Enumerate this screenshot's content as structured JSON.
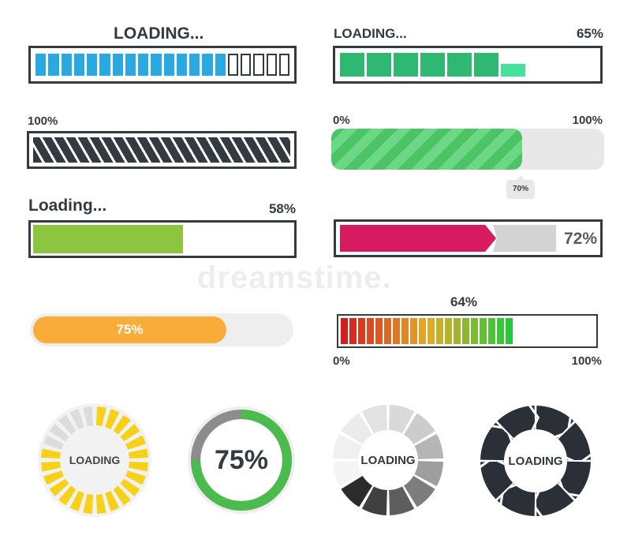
{
  "watermark": "dreamstime.",
  "bar_blue": {
    "label": "LOADING...",
    "total_segments": 20,
    "filled_segments": 15,
    "color": "#29a9e0"
  },
  "bar_green_blocks": {
    "label": "LOADING...",
    "percent_label": "65%",
    "progress": 0.65,
    "color": "#2eb872"
  },
  "bar_dark_striped": {
    "label": "100%",
    "progress": 1.0,
    "color": "#333a40"
  },
  "bar_green_striped": {
    "min_label": "0%",
    "max_label": "100%",
    "tooltip": "70%",
    "progress": 0.7,
    "color": "#4cc466"
  },
  "bar_lime": {
    "label": "Loading...",
    "percent_label": "58%",
    "progress": 0.58,
    "color": "#8cc53f"
  },
  "bar_magenta": {
    "percent_label": "72%",
    "progress": 0.72,
    "color": "#d81b60"
  },
  "bar_orange": {
    "percent_label": "75%",
    "progress": 0.75,
    "color": "#f9ac37"
  },
  "bar_gradient": {
    "percent_label": "64%",
    "min_label": "0%",
    "max_label": "100%",
    "progress": 0.64,
    "filled_segments": 20
  },
  "circle_yellow": {
    "label": "LOADING",
    "color": "#f7d117"
  },
  "circle_green": {
    "label": "75%",
    "progress": 0.75,
    "color": "#4cbb4d"
  },
  "circle_gray": {
    "label": "LOADING"
  },
  "circle_dark": {
    "label": "LOADING",
    "color": "#2b3038"
  }
}
